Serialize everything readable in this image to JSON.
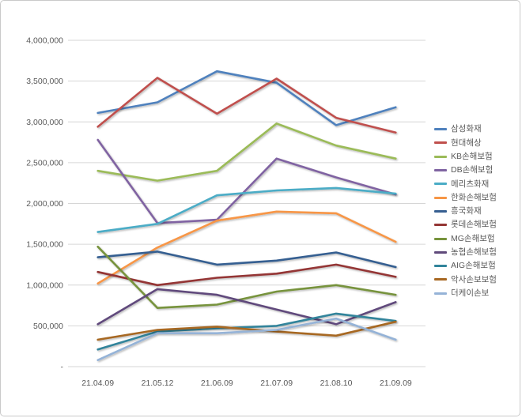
{
  "chart_data": {
    "type": "line",
    "title": "",
    "xlabel": "",
    "ylabel": "",
    "categories": [
      "21.04.09",
      "21.05.12",
      "21.06.09",
      "21.07.09",
      "21.08.10",
      "21.09.09"
    ],
    "y_ticks": [
      "4,000,000",
      "3,500,000",
      "3,000,000",
      "2,500,000",
      "2,000,000",
      "1,500,000",
      "1,000,000",
      "500,000",
      "-"
    ],
    "ylim": [
      0,
      4000000
    ],
    "grid": true,
    "legend_position": "right",
    "series": [
      {
        "name": "삼성화재",
        "color": "#4F81BD",
        "values": [
          3110000,
          3240000,
          3620000,
          3480000,
          2960000,
          3180000
        ]
      },
      {
        "name": "현대해상",
        "color": "#C0504D",
        "values": [
          2940000,
          3540000,
          3100000,
          3530000,
          3050000,
          2870000
        ]
      },
      {
        "name": "KB손해보험",
        "color": "#9BBB59",
        "values": [
          2400000,
          2280000,
          2400000,
          2980000,
          2710000,
          2550000
        ]
      },
      {
        "name": "DB손해보험",
        "color": "#8064A2",
        "values": [
          2780000,
          1760000,
          1800000,
          2550000,
          2320000,
          2110000
        ]
      },
      {
        "name": "메리츠화재",
        "color": "#4BACC6",
        "values": [
          1650000,
          1750000,
          2100000,
          2160000,
          2190000,
          2120000
        ]
      },
      {
        "name": "한화손해보험",
        "color": "#F79646",
        "values": [
          1020000,
          1460000,
          1790000,
          1900000,
          1880000,
          1530000
        ]
      },
      {
        "name": "흥국화재",
        "color": "#365F91",
        "values": [
          1340000,
          1410000,
          1250000,
          1300000,
          1400000,
          1220000
        ]
      },
      {
        "name": "롯데손해보험",
        "color": "#943634",
        "values": [
          1160000,
          1000000,
          1090000,
          1140000,
          1250000,
          1100000
        ]
      },
      {
        "name": "MG손해보험",
        "color": "#77933C",
        "values": [
          1470000,
          720000,
          760000,
          920000,
          1000000,
          880000
        ]
      },
      {
        "name": "농협손해보험",
        "color": "#604A7B",
        "values": [
          520000,
          950000,
          880000,
          700000,
          520000,
          790000
        ]
      },
      {
        "name": "AIG손해보험",
        "color": "#31849B",
        "values": [
          210000,
          430000,
          470000,
          500000,
          650000,
          560000
        ]
      },
      {
        "name": "악사손보보험",
        "color": "#A76722",
        "values": [
          330000,
          450000,
          490000,
          430000,
          380000,
          550000
        ]
      },
      {
        "name": "더케이손보",
        "color": "#95B3D7",
        "values": [
          80000,
          410000,
          410000,
          450000,
          590000,
          330000
        ]
      }
    ]
  },
  "colors": {
    "background": "#FFFFFF",
    "gridline": "#D6D6D6",
    "axis_text": "#595959",
    "frame_border": "#C9C9C9"
  }
}
